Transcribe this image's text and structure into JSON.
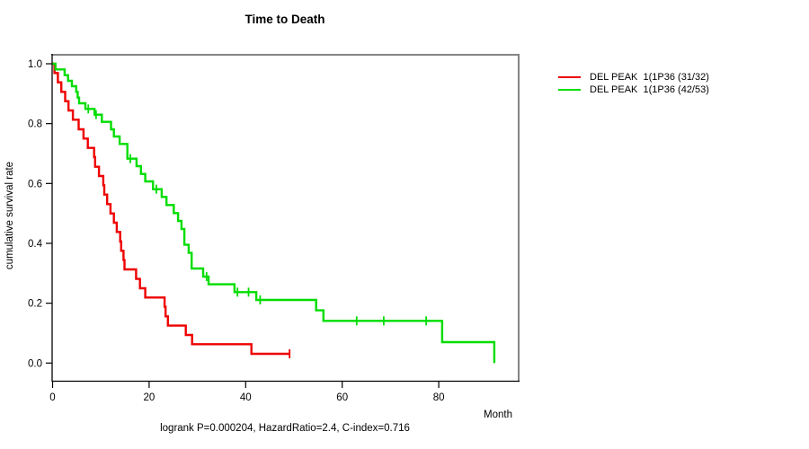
{
  "title": "Time to Death",
  "footer_stats": "logrank P=0.000204, HazardRatio=2.4, C-index=0.716",
  "colors": {
    "series1": "#ee0000",
    "series2": "#00dd00",
    "box_gray": "#848484",
    "axis_black": "#000000",
    "text": "#000000"
  },
  "chart_data": {
    "type": "line",
    "subtype": "kaplan-meier-step",
    "title": "Time to Death",
    "xlabel": "Month",
    "ylabel": "cumulative survival rate",
    "xlim": [
      0,
      96
    ],
    "ylim": [
      0.0,
      1.0
    ],
    "xticks": [
      0,
      20,
      40,
      60,
      80
    ],
    "yticks": [
      "1.0",
      "0.8",
      "0.6",
      "0.4",
      "0.2",
      "0.0"
    ],
    "grid": false,
    "legend_position": "right-outside",
    "annotation": "logrank P=0.000204, HazardRatio=2.4, C-index=0.716",
    "series": [
      {
        "name": "DEL PEAK  1(1P36 (31/32)",
        "color": "#ee0000",
        "end_month": 49.1,
        "points": [
          [
            0,
            1.0
          ],
          [
            0.4,
            0.969
          ],
          [
            1.1,
            0.938
          ],
          [
            1.8,
            0.906
          ],
          [
            2.6,
            0.875
          ],
          [
            3.3,
            0.844
          ],
          [
            4.2,
            0.813
          ],
          [
            5.4,
            0.781
          ],
          [
            6.4,
            0.75
          ],
          [
            7.3,
            0.719
          ],
          [
            8.6,
            0.688
          ],
          [
            8.8,
            0.656
          ],
          [
            9.6,
            0.625
          ],
          [
            10.5,
            0.594
          ],
          [
            10.7,
            0.563
          ],
          [
            11.3,
            0.531
          ],
          [
            12.0,
            0.5
          ],
          [
            12.7,
            0.469
          ],
          [
            13.3,
            0.438
          ],
          [
            14.0,
            0.406
          ],
          [
            14.2,
            0.375
          ],
          [
            14.7,
            0.344
          ],
          [
            14.9,
            0.313
          ],
          [
            17.3,
            0.281
          ],
          [
            18.1,
            0.25
          ],
          [
            19.2,
            0.219
          ],
          [
            23.2,
            0.188
          ],
          [
            23.4,
            0.156
          ],
          [
            23.9,
            0.125
          ],
          [
            27.6,
            0.094
          ],
          [
            28.9,
            0.063
          ],
          [
            41.2,
            0.031
          ]
        ],
        "censors": [
          [
            49.1,
            0.031
          ]
        ]
      },
      {
        "name": "DEL PEAK  1(1P36 (42/53)",
        "color": "#00dd00",
        "end_month": 91.5,
        "points": [
          [
            0,
            1.0
          ],
          [
            0.6,
            0.981
          ],
          [
            2.5,
            0.962
          ],
          [
            3.2,
            0.943
          ],
          [
            4.0,
            0.925
          ],
          [
            4.9,
            0.906
          ],
          [
            5.2,
            0.887
          ],
          [
            5.5,
            0.868
          ],
          [
            6.8,
            0.849
          ],
          [
            8.7,
            0.83
          ],
          [
            10.2,
            0.806
          ],
          [
            12.1,
            0.781
          ],
          [
            12.7,
            0.757
          ],
          [
            13.9,
            0.732
          ],
          [
            15.5,
            0.683
          ],
          [
            17.4,
            0.658
          ],
          [
            18.3,
            0.632
          ],
          [
            19.2,
            0.607
          ],
          [
            20.8,
            0.581
          ],
          [
            22.6,
            0.555
          ],
          [
            23.6,
            0.528
          ],
          [
            25.1,
            0.501
          ],
          [
            26.0,
            0.475
          ],
          [
            26.7,
            0.448
          ],
          [
            27.3,
            0.395
          ],
          [
            28.2,
            0.368
          ],
          [
            28.8,
            0.316
          ],
          [
            31.2,
            0.289
          ],
          [
            32.3,
            0.263
          ],
          [
            37.7,
            0.237
          ],
          [
            42.2,
            0.211
          ],
          [
            54.6,
            0.176
          ],
          [
            56.1,
            0.141
          ],
          [
            80.7,
            0.07
          ],
          [
            91.5,
            0.0
          ]
        ],
        "censors": [
          [
            7.4,
            0.849
          ],
          [
            9.0,
            0.83
          ],
          [
            16.1,
            0.683
          ],
          [
            21.5,
            0.581
          ],
          [
            31.9,
            0.289
          ],
          [
            38.3,
            0.237
          ],
          [
            40.6,
            0.237
          ],
          [
            43.0,
            0.211
          ],
          [
            63.0,
            0.141
          ],
          [
            68.6,
            0.141
          ],
          [
            77.4,
            0.141
          ]
        ]
      }
    ]
  }
}
